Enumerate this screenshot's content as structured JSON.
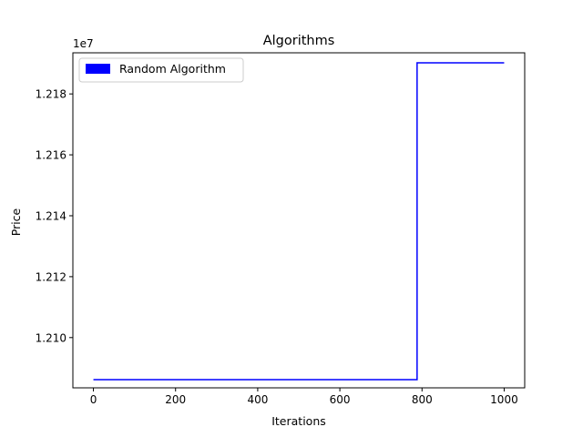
{
  "chart_data": {
    "type": "line",
    "title": "Algorithms",
    "xlabel": "Iterations",
    "ylabel": "Price",
    "y_offset_label": "1e7",
    "xlim": [
      -50,
      1050
    ],
    "ylim": [
      1.20835,
      1.21935
    ],
    "x_ticks": [
      {
        "value": 0,
        "label": "0"
      },
      {
        "value": 200,
        "label": "200"
      },
      {
        "value": 400,
        "label": "400"
      },
      {
        "value": 600,
        "label": "600"
      },
      {
        "value": 800,
        "label": "800"
      },
      {
        "value": 1000,
        "label": "1000"
      }
    ],
    "y_ticks": [
      {
        "value": 1.21,
        "label": "1.210"
      },
      {
        "value": 1.212,
        "label": "1.212"
      },
      {
        "value": 1.214,
        "label": "1.214"
      },
      {
        "value": 1.216,
        "label": "1.216"
      },
      {
        "value": 1.218,
        "label": "1.218"
      }
    ],
    "grid": false,
    "legend_position": "upper-left",
    "series": [
      {
        "name": "Random Algorithm",
        "color": "#0000ff",
        "points": [
          [
            0,
            1.20862
          ],
          [
            788,
            1.20862
          ],
          [
            788,
            1.21902
          ],
          [
            1000,
            1.21902
          ]
        ]
      }
    ]
  }
}
